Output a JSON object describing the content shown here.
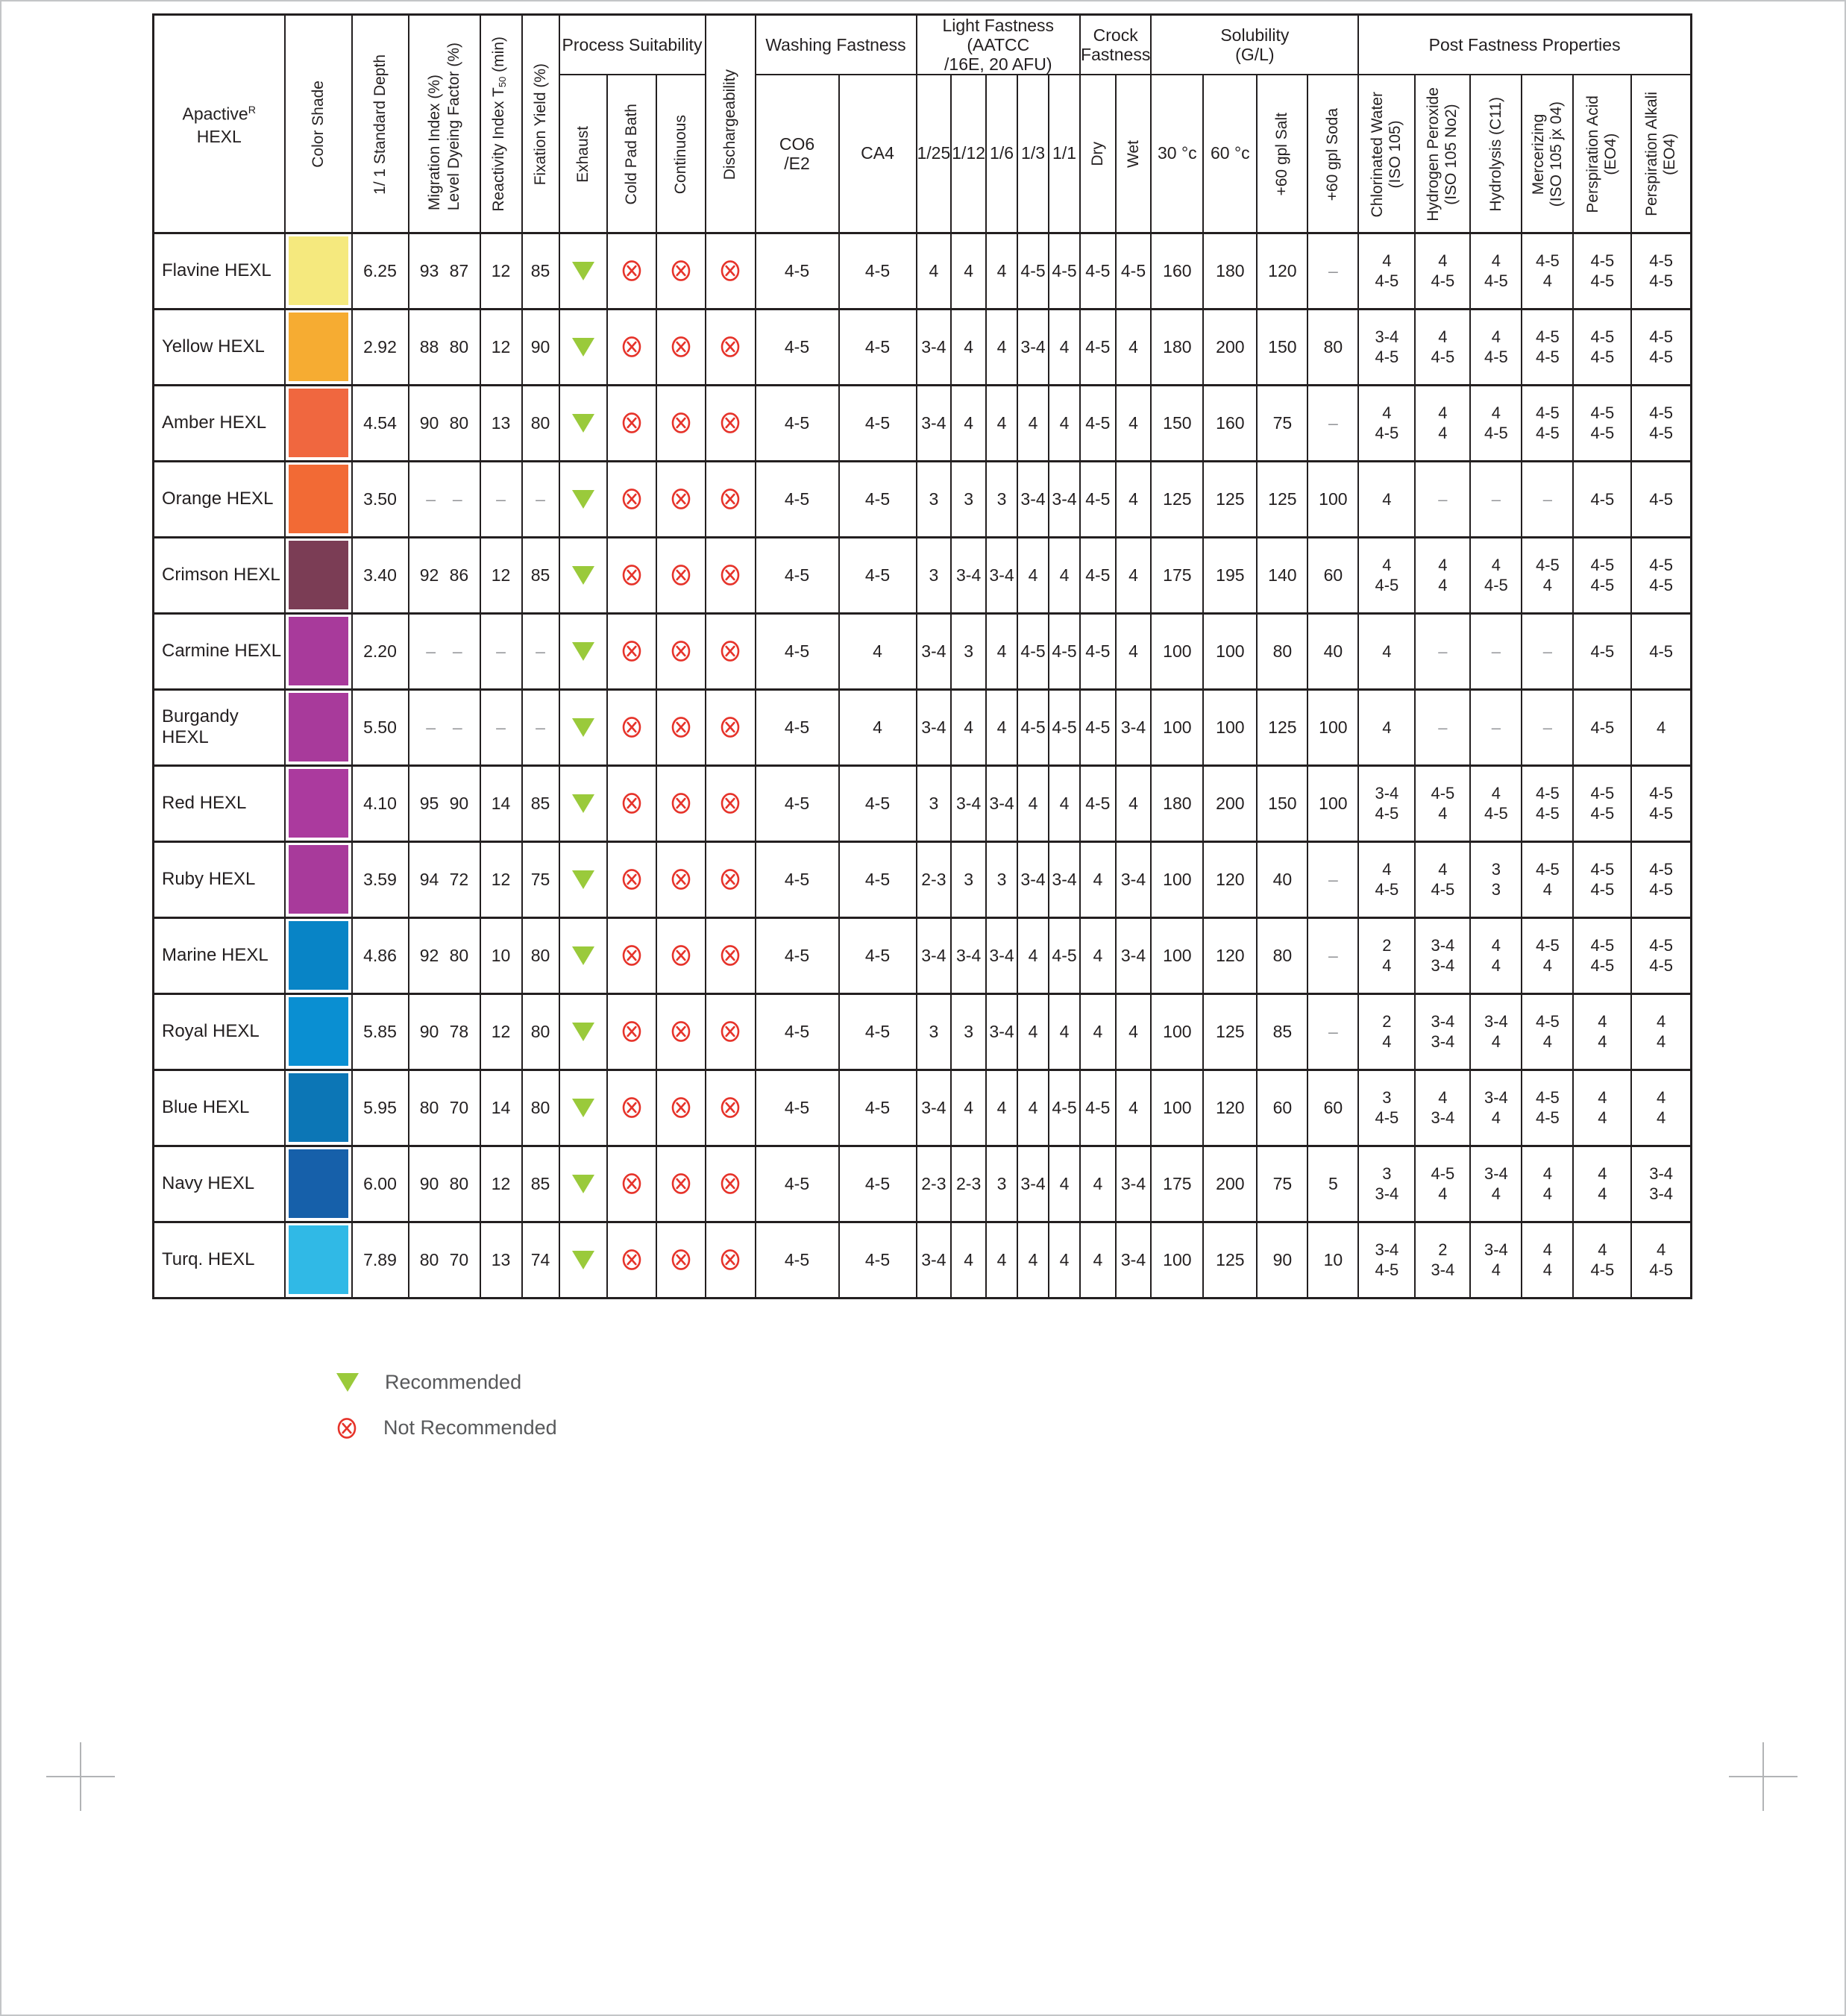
{
  "colors": {
    "recommended": "#9aca3b",
    "not_recommended": "#e6332a",
    "border": "#231f20"
  },
  "table": {
    "title": {
      "brand": "Apactive",
      "brand_sup": "R",
      "line2": "HEXL"
    },
    "headers": {
      "color_shade": "Color Shade",
      "standard_depth": "1/ 1 Standard Depth",
      "migration_index": "Migration Index (%)",
      "level_dyeing": "Level Dyeing Factor (%)",
      "reactivity_pre": "Reactivity Index T",
      "reactivity_sub": "50",
      "reactivity_post": " (min)",
      "fixation_yield": "Fixation Yield (%)",
      "process_suitability": "Process Suitability",
      "exhaust": "Exhaust",
      "cold_pad_bath": "Cold Pad Bath",
      "continuous": "Continuous",
      "dischargeability": "Dischargeability",
      "washing_fastness": "Washing Fastness",
      "co6": "CO6\n/E2",
      "ca4": "CA4",
      "light_fastness": "Light Fastness (AATCC\n/16E, 20 AFU)",
      "lf_cols": [
        "1/25",
        "1/12",
        "1/6",
        "1/3",
        "1/1"
      ],
      "crock": "Crock\nFastness",
      "dry": "Dry",
      "wet": "Wet",
      "solubility": "Solubility\n(G/L)",
      "t30": "30 °c",
      "t60": "60 °c",
      "salt": "+60 gpl Salt",
      "soda": "+60 gpl Soda",
      "post_fastness": "Post Fastness Properties",
      "post_cols": [
        "Chlorinated Water\n(ISO 105)",
        "Hydrogen Peroxide\n(ISO 105 No2)",
        "Hydrolysis (C11)",
        "Mercerizing\n(ISO 105 jx 04)",
        "Perspiration Acid\n(EO4)",
        "Perspiration Alkali\n(EO4)"
      ]
    },
    "rows": [
      {
        "name": "Flavine HEXL",
        "swatch": "#F5E97E",
        "depth": "6.25",
        "migration": "93",
        "level": "87",
        "reactivity": "12",
        "fixation": "85",
        "exhaust": "rec",
        "cold_pad_bath": "not",
        "continuous": "not",
        "dischargeability": "not",
        "co6": "4-5",
        "ca4": "4-5",
        "lf": [
          "4",
          "4",
          "4",
          "4-5",
          "4-5"
        ],
        "dry": "4-5",
        "wet": "4-5",
        "t30": "160",
        "t60": "180",
        "salt": "120",
        "soda": "–",
        "post": [
          [
            "4",
            "4-5"
          ],
          [
            "4",
            "4-5"
          ],
          [
            "4",
            "4-5"
          ],
          [
            "4-5",
            "4"
          ],
          [
            "4-5",
            "4-5"
          ],
          [
            "4-5",
            "4-5"
          ]
        ]
      },
      {
        "name": "Yellow HEXL",
        "swatch": "#F6AC32",
        "depth": "2.92",
        "migration": "88",
        "level": "80",
        "reactivity": "12",
        "fixation": "90",
        "exhaust": "rec",
        "cold_pad_bath": "not",
        "continuous": "not",
        "dischargeability": "not",
        "co6": "4-5",
        "ca4": "4-5",
        "lf": [
          "3-4",
          "4",
          "4",
          "3-4",
          "4"
        ],
        "dry": "4-5",
        "wet": "4",
        "t30": "180",
        "t60": "200",
        "salt": "150",
        "soda": "80",
        "post": [
          [
            "3-4",
            "4-5"
          ],
          [
            "4",
            "4-5"
          ],
          [
            "4",
            "4-5"
          ],
          [
            "4-5",
            "4-5"
          ],
          [
            "4-5",
            "4-5"
          ],
          [
            "4-5",
            "4-5"
          ]
        ]
      },
      {
        "name": "Amber HEXL",
        "swatch": "#F0673F",
        "depth": "4.54",
        "migration": "90",
        "level": "80",
        "reactivity": "13",
        "fixation": "80",
        "exhaust": "rec",
        "cold_pad_bath": "not",
        "continuous": "not",
        "dischargeability": "not",
        "co6": "4-5",
        "ca4": "4-5",
        "lf": [
          "3-4",
          "4",
          "4",
          "4",
          "4"
        ],
        "dry": "4-5",
        "wet": "4",
        "t30": "150",
        "t60": "160",
        "salt": "75",
        "soda": "–",
        "post": [
          [
            "4",
            "4-5"
          ],
          [
            "4",
            "4"
          ],
          [
            "4",
            "4-5"
          ],
          [
            "4-5",
            "4-5"
          ],
          [
            "4-5",
            "4-5"
          ],
          [
            "4-5",
            "4-5"
          ]
        ]
      },
      {
        "name": "Orange HEXL",
        "swatch": "#F26A35",
        "depth": "3.50",
        "migration": "–",
        "level": "–",
        "reactivity": "–",
        "fixation": "–",
        "exhaust": "rec",
        "cold_pad_bath": "not",
        "continuous": "not",
        "dischargeability": "not",
        "co6": "4-5",
        "ca4": "4-5",
        "lf": [
          "3",
          "3",
          "3",
          "3-4",
          "3-4"
        ],
        "dry": "4-5",
        "wet": "4",
        "t30": "125",
        "t60": "125",
        "salt": "125",
        "soda": "100",
        "post": [
          [
            "4",
            ""
          ],
          [
            "–",
            ""
          ],
          [
            "–",
            ""
          ],
          [
            "–",
            ""
          ],
          [
            "4-5",
            ""
          ],
          [
            "4-5",
            ""
          ]
        ]
      },
      {
        "name": "Crimson HEXL",
        "swatch": "#7B3D55",
        "depth": "3.40",
        "migration": "92",
        "level": "86",
        "reactivity": "12",
        "fixation": "85",
        "exhaust": "rec",
        "cold_pad_bath": "not",
        "continuous": "not",
        "dischargeability": "not",
        "co6": "4-5",
        "ca4": "4-5",
        "lf": [
          "3",
          "3-4",
          "3-4",
          "4",
          "4"
        ],
        "dry": "4-5",
        "wet": "4",
        "t30": "175",
        "t60": "195",
        "salt": "140",
        "soda": "60",
        "post": [
          [
            "4",
            "4-5"
          ],
          [
            "4",
            "4"
          ],
          [
            "4",
            "4-5"
          ],
          [
            "4-5",
            "4"
          ],
          [
            "4-5",
            "4-5"
          ],
          [
            "4-5",
            "4-5"
          ]
        ]
      },
      {
        "name": "Carmine HEXL",
        "swatch": "#A83A9B",
        "depth": "2.20",
        "migration": "–",
        "level": "–",
        "reactivity": "–",
        "fixation": "–",
        "exhaust": "rec",
        "cold_pad_bath": "not",
        "continuous": "not",
        "dischargeability": "not",
        "co6": "4-5",
        "ca4": "4",
        "lf": [
          "3-4",
          "3",
          "4",
          "4-5",
          "4-5"
        ],
        "dry": "4-5",
        "wet": "4",
        "t30": "100",
        "t60": "100",
        "salt": "80",
        "soda": "40",
        "post": [
          [
            "4",
            ""
          ],
          [
            "–",
            ""
          ],
          [
            "–",
            ""
          ],
          [
            "–",
            ""
          ],
          [
            "4-5",
            ""
          ],
          [
            "4-5",
            ""
          ]
        ]
      },
      {
        "name": "Burgandy HEXL",
        "swatch": "#A83A9B",
        "depth": "5.50",
        "migration": "–",
        "level": "–",
        "reactivity": "–",
        "fixation": "–",
        "exhaust": "rec",
        "cold_pad_bath": "not",
        "continuous": "not",
        "dischargeability": "not",
        "co6": "4-5",
        "ca4": "4",
        "lf": [
          "3-4",
          "4",
          "4",
          "4-5",
          "4-5"
        ],
        "dry": "4-5",
        "wet": "3-4",
        "t30": "100",
        "t60": "100",
        "salt": "125",
        "soda": "100",
        "post": [
          [
            "4",
            ""
          ],
          [
            "–",
            ""
          ],
          [
            "–",
            ""
          ],
          [
            "–",
            ""
          ],
          [
            "4-5",
            ""
          ],
          [
            "4",
            ""
          ]
        ]
      },
      {
        "name": "Red HEXL",
        "swatch": "#AB3A9E",
        "depth": "4.10",
        "migration": "95",
        "level": "90",
        "reactivity": "14",
        "fixation": "85",
        "exhaust": "rec",
        "cold_pad_bath": "not",
        "continuous": "not",
        "dischargeability": "not",
        "co6": "4-5",
        "ca4": "4-5",
        "lf": [
          "3",
          "3-4",
          "3-4",
          "4",
          "4"
        ],
        "dry": "4-5",
        "wet": "4",
        "t30": "180",
        "t60": "200",
        "salt": "150",
        "soda": "100",
        "post": [
          [
            "3-4",
            "4-5"
          ],
          [
            "4-5",
            "4"
          ],
          [
            "4",
            "4-5"
          ],
          [
            "4-5",
            "4-5"
          ],
          [
            "4-5",
            "4-5"
          ],
          [
            "4-5",
            "4-5"
          ]
        ]
      },
      {
        "name": "Ruby HEXL",
        "swatch": "#A83A9B",
        "depth": "3.59",
        "migration": "94",
        "level": "72",
        "reactivity": "12",
        "fixation": "75",
        "exhaust": "rec",
        "cold_pad_bath": "not",
        "continuous": "not",
        "dischargeability": "not",
        "co6": "4-5",
        "ca4": "4-5",
        "lf": [
          "2-3",
          "3",
          "3",
          "3-4",
          "3-4"
        ],
        "dry": "4",
        "wet": "3-4",
        "t30": "100",
        "t60": "120",
        "salt": "40",
        "soda": "–",
        "post": [
          [
            "4",
            "4-5"
          ],
          [
            "4",
            "4-5"
          ],
          [
            "3",
            "3"
          ],
          [
            "4-5",
            "4"
          ],
          [
            "4-5",
            "4-5"
          ],
          [
            "4-5",
            "4-5"
          ]
        ]
      },
      {
        "name": "Marine HEXL",
        "swatch": "#0884C6",
        "depth": "4.86",
        "migration": "92",
        "level": "80",
        "reactivity": "10",
        "fixation": "80",
        "exhaust": "rec",
        "cold_pad_bath": "not",
        "continuous": "not",
        "dischargeability": "not",
        "co6": "4-5",
        "ca4": "4-5",
        "lf": [
          "3-4",
          "3-4",
          "3-4",
          "4",
          "4-5"
        ],
        "dry": "4",
        "wet": "3-4",
        "t30": "100",
        "t60": "120",
        "salt": "80",
        "soda": "–",
        "post": [
          [
            "2",
            "4"
          ],
          [
            "3-4",
            "3-4"
          ],
          [
            "4",
            "4"
          ],
          [
            "4-5",
            "4"
          ],
          [
            "4-5",
            "4-5"
          ],
          [
            "4-5",
            "4-5"
          ]
        ]
      },
      {
        "name": "Royal HEXL",
        "swatch": "#0A8FD2",
        "depth": "5.85",
        "migration": "90",
        "level": "78",
        "reactivity": "12",
        "fixation": "80",
        "exhaust": "rec",
        "cold_pad_bath": "not",
        "continuous": "not",
        "dischargeability": "not",
        "co6": "4-5",
        "ca4": "4-5",
        "lf": [
          "3",
          "3",
          "3-4",
          "4",
          "4"
        ],
        "dry": "4",
        "wet": "4",
        "t30": "100",
        "t60": "125",
        "salt": "85",
        "soda": "–",
        "post": [
          [
            "2",
            "4"
          ],
          [
            "3-4",
            "3-4"
          ],
          [
            "3-4",
            "4"
          ],
          [
            "4-5",
            "4"
          ],
          [
            "4",
            "4"
          ],
          [
            "4",
            "4"
          ]
        ]
      },
      {
        "name": "Blue HEXL",
        "swatch": "#0C76B6",
        "depth": "5.95",
        "migration": "80",
        "level": "70",
        "reactivity": "14",
        "fixation": "80",
        "exhaust": "rec",
        "cold_pad_bath": "not",
        "continuous": "not",
        "dischargeability": "not",
        "co6": "4-5",
        "ca4": "4-5",
        "lf": [
          "3-4",
          "4",
          "4",
          "4",
          "4-5"
        ],
        "dry": "4-5",
        "wet": "4",
        "t30": "100",
        "t60": "120",
        "salt": "60",
        "soda": "60",
        "post": [
          [
            "3",
            "4-5"
          ],
          [
            "4",
            "3-4"
          ],
          [
            "3-4",
            "4"
          ],
          [
            "4-5",
            "4-5"
          ],
          [
            "4",
            "4"
          ],
          [
            "4",
            "4"
          ]
        ]
      },
      {
        "name": "Navy HEXL",
        "swatch": "#1660AA",
        "depth": "6.00",
        "migration": "90",
        "level": "80",
        "reactivity": "12",
        "fixation": "85",
        "exhaust": "rec",
        "cold_pad_bath": "not",
        "continuous": "not",
        "dischargeability": "not",
        "co6": "4-5",
        "ca4": "4-5",
        "lf": [
          "2-3",
          "2-3",
          "3",
          "3-4",
          "4"
        ],
        "dry": "4",
        "wet": "3-4",
        "t30": "175",
        "t60": "200",
        "salt": "75",
        "soda": "5",
        "post": [
          [
            "3",
            "3-4"
          ],
          [
            "4-5",
            "4"
          ],
          [
            "3-4",
            "4"
          ],
          [
            "4",
            "4"
          ],
          [
            "4",
            "4"
          ],
          [
            "3-4",
            "3-4"
          ]
        ]
      },
      {
        "name": "Turq. HEXL",
        "swatch": "#30B9E6",
        "depth": "7.89",
        "migration": "80",
        "level": "70",
        "reactivity": "13",
        "fixation": "74",
        "exhaust": "rec",
        "cold_pad_bath": "not",
        "continuous": "not",
        "dischargeability": "not",
        "co6": "4-5",
        "ca4": "4-5",
        "lf": [
          "3-4",
          "4",
          "4",
          "4",
          "4"
        ],
        "dry": "4",
        "wet": "3-4",
        "t30": "100",
        "t60": "125",
        "salt": "90",
        "soda": "10",
        "post": [
          [
            "3-4",
            "4-5"
          ],
          [
            "2",
            "3-4"
          ],
          [
            "3-4",
            "4"
          ],
          [
            "4",
            "4"
          ],
          [
            "4",
            "4-5"
          ],
          [
            "4",
            "4-5"
          ]
        ]
      }
    ]
  },
  "legend": {
    "recommended": "Recommended",
    "not_recommended": "Not Recommended"
  }
}
